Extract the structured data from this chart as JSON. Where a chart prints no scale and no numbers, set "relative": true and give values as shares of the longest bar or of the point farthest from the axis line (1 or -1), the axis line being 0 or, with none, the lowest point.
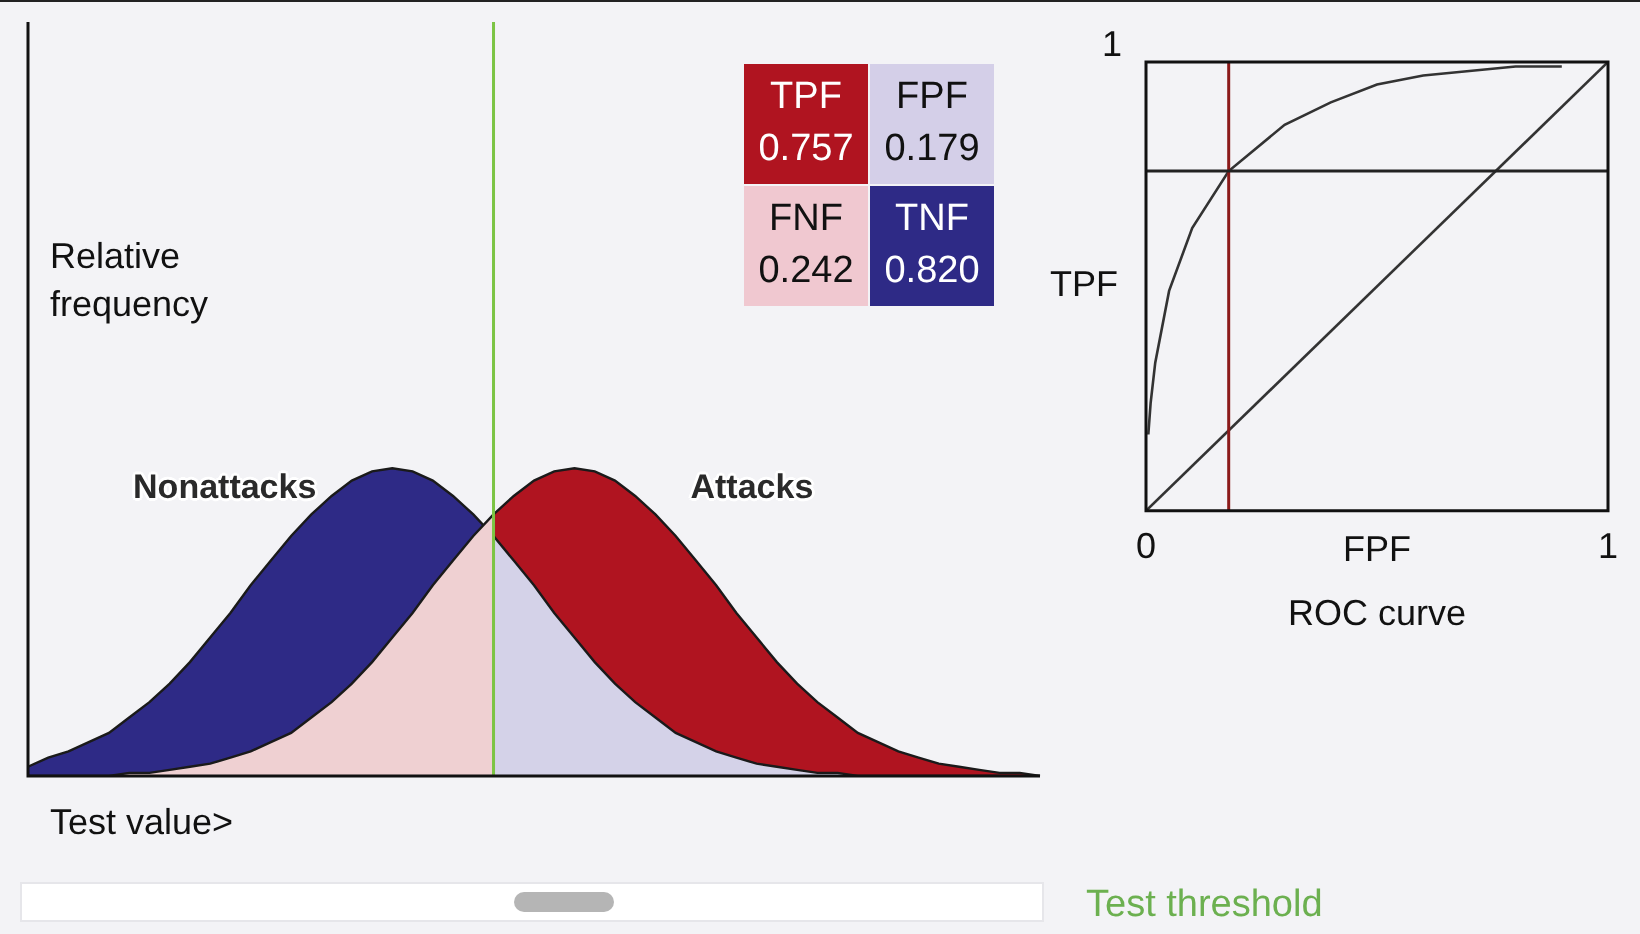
{
  "chart_data": [
    {
      "type": "area",
      "relative": true,
      "xlabel": "Test value>",
      "ylabel": "Relative frequency",
      "annotations": [
        "Test threshold"
      ],
      "categories": [
        null,
        null,
        null,
        null,
        null,
        null,
        null,
        null,
        null,
        null,
        null,
        null,
        null,
        null,
        null,
        null,
        null,
        null,
        null,
        null,
        null,
        null,
        null,
        null,
        null,
        null,
        null,
        null,
        null,
        null,
        null,
        null,
        null,
        null,
        null,
        null,
        null,
        null,
        null,
        null,
        null,
        null,
        null,
        null,
        null,
        null,
        null,
        null,
        null,
        null,
        null
      ],
      "series": [
        {
          "color": "#efd0d2",
          "values": [
            0,
            0,
            0,
            0,
            0,
            0.01,
            0.01,
            0.02,
            0.03,
            0.04,
            0.06,
            0.08,
            0.11,
            0.14,
            0.19,
            0.24,
            0.3,
            0.37,
            0.45,
            0.53,
            0.62,
            0.7,
            0.78,
            0.85,
            null,
            null,
            null,
            null,
            null,
            null,
            null,
            null,
            null,
            null,
            null,
            null,
            null,
            null,
            null,
            null,
            null,
            null,
            null,
            null,
            null,
            null,
            null,
            null,
            null,
            null,
            null
          ]
        },
        {
          "color": "#d4d2e8",
          "values": [
            null,
            null,
            null,
            null,
            null,
            null,
            null,
            null,
            null,
            null,
            null,
            null,
            null,
            null,
            null,
            null,
            null,
            null,
            null,
            null,
            null,
            null,
            null,
            0.78,
            0.7,
            0.62,
            0.53,
            0.45,
            0.37,
            0.3,
            0.24,
            0.19,
            0.14,
            0.11,
            0.08,
            0.06,
            0.04,
            0.03,
            0.02,
            0.01,
            0.01,
            0,
            0,
            0,
            0,
            0,
            0,
            0,
            0,
            0,
            0
          ]
        },
        {
          "name": "Nonattacks",
          "color": "#2e2a86",
          "values": [
            0.03,
            0.06,
            0.08,
            0.11,
            0.14,
            0.19,
            0.24,
            0.3,
            0.37,
            0.45,
            0.53,
            0.62,
            0.7,
            0.78,
            0.85,
            0.91,
            0.96,
            0.99,
            1,
            0.99,
            0.96,
            0.91,
            0.85,
            0.78,
            null,
            null,
            null,
            null,
            null,
            null,
            null,
            null,
            null,
            null,
            null,
            null,
            null,
            null,
            null,
            null,
            null,
            null,
            null,
            null,
            null,
            null,
            null,
            null,
            null,
            null,
            null
          ]
        },
        {
          "name": "Attacks",
          "color": "#b01420",
          "values": [
            null,
            null,
            null,
            null,
            null,
            null,
            null,
            null,
            null,
            null,
            null,
            null,
            null,
            null,
            null,
            null,
            null,
            null,
            null,
            null,
            null,
            null,
            null,
            0.85,
            0.91,
            0.96,
            0.99,
            1,
            0.99,
            0.96,
            0.91,
            0.85,
            0.78,
            0.7,
            0.62,
            0.53,
            0.45,
            0.37,
            0.3,
            0.24,
            0.19,
            0.14,
            0.11,
            0.08,
            0.06,
            0.04,
            0.03,
            0.02,
            0.01,
            0.01,
            0
          ]
        }
      ]
    },
    {
      "type": "other",
      "categories": [
        "TPF",
        "FPF",
        "FNF",
        "TNF"
      ],
      "values": [
        0.757,
        0.179,
        0.242,
        0.82
      ],
      "value_labels": [
        "0.757",
        "0.179",
        "0.242",
        "0.820"
      ],
      "colors": [
        "#b01420",
        "#d4cfe8",
        "#f0c8d0",
        "#2e2a86"
      ]
    },
    {
      "type": "line",
      "title": "ROC curve",
      "xlabel": "FPF",
      "ylabel": "TPF",
      "relative": true,
      "annotations": [
        "1"
      ],
      "xlim": [
        0,
        1
      ],
      "xticks": [
        0,
        1
      ],
      "series": [
        {
          "color": "#333333",
          "x": [
            0.005,
            0.01,
            0.02,
            0.05,
            0.1,
            0.179,
            0.3,
            0.4,
            0.5,
            0.6,
            0.7,
            0.8,
            0.9
          ],
          "values": [
            0.17,
            0.24,
            0.33,
            0.49,
            0.63,
            0.757,
            0.86,
            0.91,
            0.95,
            0.97,
            0.98,
            0.99,
            0.99
          ]
        },
        {
          "color": "#333333",
          "x": [
            0,
            1
          ],
          "values": [
            0,
            1
          ]
        }
      ],
      "ref_lines": [
        {
          "axis": "x",
          "value": 0.179,
          "color": "#8b1a1a"
        },
        {
          "axis": "y",
          "value": 0.757,
          "color": "#222222"
        }
      ]
    }
  ]
}
